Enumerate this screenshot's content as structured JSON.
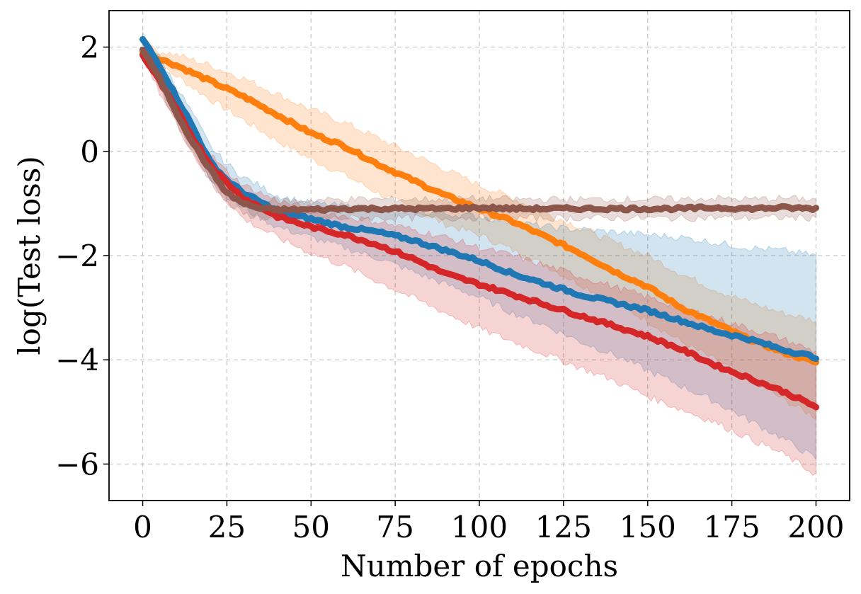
{
  "chart_data": {
    "type": "line",
    "title": "",
    "xlabel": "Number of epochs",
    "ylabel": "log(Test loss)",
    "xlim": [
      -10,
      210
    ],
    "ylim": [
      -6.7,
      2.7
    ],
    "xticks": [
      0,
      25,
      50,
      75,
      100,
      125,
      150,
      175,
      200
    ],
    "yticks": [
      2,
      0,
      -2,
      -4,
      -6
    ],
    "xtick_labels": [
      "0",
      "25",
      "50",
      "75",
      "100",
      "125",
      "150",
      "175",
      "200"
    ],
    "ytick_labels": [
      "2",
      "0",
      "−2",
      "−4",
      "−6"
    ],
    "grid": true,
    "legend": "none",
    "series": [
      {
        "color": "#ff7f0e",
        "x": [
          0,
          10,
          20,
          30,
          40,
          50,
          60,
          70,
          80,
          90,
          100,
          110,
          120,
          130,
          140,
          150,
          160,
          170,
          180,
          190,
          200
        ],
        "y": [
          1.9,
          1.65,
          1.35,
          1.05,
          0.7,
          0.35,
          0.1,
          -0.25,
          -0.55,
          -0.85,
          -1.1,
          -1.35,
          -1.65,
          -1.95,
          -2.3,
          -2.6,
          -3.0,
          -3.3,
          -3.6,
          -3.85,
          -4.05
        ],
        "lower": [
          1.8,
          1.45,
          1.0,
          0.6,
          0.2,
          -0.15,
          -0.45,
          -0.8,
          -1.1,
          -1.4,
          -1.6,
          -1.9,
          -2.2,
          -2.55,
          -2.9,
          -3.25,
          -3.65,
          -4.0,
          -4.35,
          -4.75,
          -5.1
        ],
        "upper": [
          2.0,
          1.85,
          1.65,
          1.4,
          1.1,
          0.8,
          0.55,
          0.25,
          -0.05,
          -0.35,
          -0.65,
          -0.9,
          -1.2,
          -1.45,
          -1.75,
          -2.0,
          -2.35,
          -2.65,
          -2.9,
          -3.1,
          -3.25
        ]
      },
      {
        "color": "#1f77b4",
        "x": [
          0,
          5,
          10,
          15,
          20,
          25,
          30,
          40,
          50,
          60,
          70,
          80,
          90,
          100,
          110,
          120,
          130,
          140,
          150,
          160,
          170,
          180,
          190,
          200
        ],
        "y": [
          2.15,
          1.65,
          1.05,
          0.45,
          -0.2,
          -0.55,
          -0.8,
          -1.15,
          -1.3,
          -1.45,
          -1.55,
          -1.7,
          -1.9,
          -2.1,
          -2.35,
          -2.55,
          -2.75,
          -2.9,
          -3.05,
          -3.25,
          -3.45,
          -3.6,
          -3.8,
          -3.95
        ],
        "lower": [
          2.05,
          1.5,
          0.85,
          0.2,
          -0.5,
          -0.85,
          -1.1,
          -1.45,
          -1.65,
          -1.85,
          -2.05,
          -2.3,
          -2.55,
          -2.8,
          -3.1,
          -3.35,
          -3.65,
          -3.9,
          -4.2,
          -4.5,
          -4.8,
          -5.15,
          -5.5,
          -5.9
        ],
        "upper": [
          2.25,
          1.8,
          1.25,
          0.7,
          0.1,
          -0.25,
          -0.5,
          -0.85,
          -1.0,
          -1.05,
          -1.1,
          -1.15,
          -1.2,
          -1.25,
          -1.35,
          -1.45,
          -1.5,
          -1.55,
          -1.6,
          -1.65,
          -1.75,
          -1.85,
          -1.9,
          -2.0
        ]
      },
      {
        "color": "#d62728",
        "x": [
          0,
          5,
          10,
          15,
          20,
          25,
          30,
          40,
          50,
          60,
          70,
          80,
          90,
          100,
          110,
          120,
          130,
          140,
          150,
          160,
          170,
          180,
          190,
          200
        ],
        "y": [
          1.85,
          1.35,
          0.8,
          0.25,
          -0.25,
          -0.6,
          -0.9,
          -1.25,
          -1.45,
          -1.6,
          -1.8,
          -2.05,
          -2.35,
          -2.55,
          -2.75,
          -2.95,
          -3.15,
          -3.35,
          -3.55,
          -3.8,
          -4.1,
          -4.35,
          -4.6,
          -4.9
        ],
        "lower": [
          1.75,
          1.15,
          0.55,
          -0.05,
          -0.55,
          -0.95,
          -1.3,
          -1.65,
          -1.95,
          -2.2,
          -2.5,
          -2.8,
          -3.1,
          -3.4,
          -3.65,
          -3.9,
          -4.15,
          -4.4,
          -4.7,
          -4.95,
          -5.2,
          -5.5,
          -5.8,
          -6.2
        ],
        "upper": [
          1.95,
          1.5,
          1.0,
          0.45,
          -0.05,
          -0.4,
          -0.65,
          -0.95,
          -1.1,
          -1.25,
          -1.35,
          -1.5,
          -1.65,
          -1.85,
          -2.0,
          -2.2,
          -2.4,
          -2.6,
          -2.8,
          -3.0,
          -3.2,
          -3.4,
          -3.6,
          -3.85
        ]
      },
      {
        "color": "#8c564b",
        "x": [
          0,
          5,
          10,
          15,
          20,
          25,
          30,
          35,
          40,
          50,
          60,
          70,
          80,
          90,
          100,
          110,
          120,
          130,
          140,
          150,
          160,
          170,
          180,
          190,
          200
        ],
        "y": [
          1.95,
          1.4,
          0.75,
          0.15,
          -0.35,
          -0.8,
          -1.0,
          -1.1,
          -1.12,
          -1.12,
          -1.1,
          -1.1,
          -1.1,
          -1.1,
          -1.08,
          -1.1,
          -1.1,
          -1.1,
          -1.1,
          -1.1,
          -1.1,
          -1.08,
          -1.1,
          -1.08,
          -1.1
        ],
        "lower": [
          1.85,
          1.25,
          0.55,
          -0.05,
          -0.55,
          -1.0,
          -1.2,
          -1.27,
          -1.3,
          -1.3,
          -1.28,
          -1.28,
          -1.28,
          -1.28,
          -1.27,
          -1.28,
          -1.28,
          -1.28,
          -1.28,
          -1.28,
          -1.28,
          -1.27,
          -1.28,
          -1.27,
          -1.28
        ],
        "upper": [
          2.05,
          1.55,
          0.95,
          0.35,
          -0.15,
          -0.6,
          -0.8,
          -0.92,
          -0.94,
          -0.94,
          -0.92,
          -0.92,
          -0.92,
          -0.92,
          -0.9,
          -0.92,
          -0.92,
          -0.92,
          -0.92,
          -0.92,
          -0.92,
          -0.9,
          -0.92,
          -0.9,
          -0.92
        ]
      }
    ]
  }
}
